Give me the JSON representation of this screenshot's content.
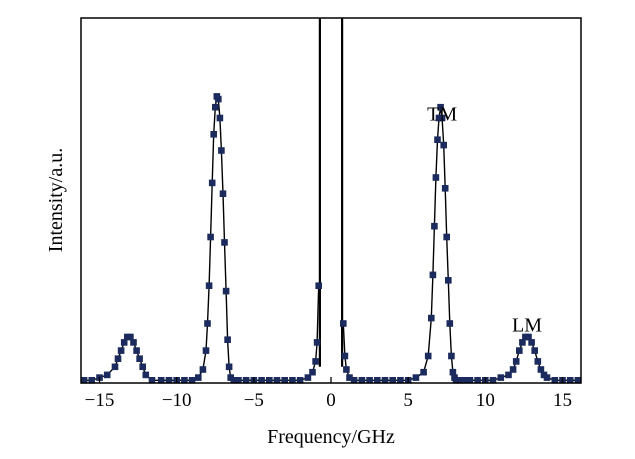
{
  "chart_data": {
    "type": "scatter",
    "title": "",
    "xlabel": "Frequency/GHz",
    "ylabel": "Intensity/a.u.",
    "xlim": [
      -16.2,
      16.2
    ],
    "ylim": [
      0,
      1.35
    ],
    "x_ticks": [
      -15,
      -10,
      -5,
      0,
      5,
      10,
      15
    ],
    "x_tick_labels": [
      "−15",
      "−10",
      "−5",
      "0",
      "5",
      "10",
      "15"
    ],
    "y_tick_labels_shown": false,
    "grid": false,
    "legend": "none",
    "marker_color": "#1c2b5e",
    "line_color": "#000000",
    "annotations": [
      {
        "text": "TM",
        "x": 7.2,
        "y": 0.97
      },
      {
        "text": "LM",
        "x": 12.7,
        "y": 0.19
      }
    ],
    "series": [
      {
        "x": [
          -16.0,
          -15.5,
          -15.0,
          -14.5,
          -14.0,
          -13.8,
          -13.6,
          -13.4,
          -13.2,
          -13.0,
          -12.8,
          -12.6,
          -12.4,
          -12.2,
          -12.0,
          -11.6,
          -11.0,
          -10.5,
          -10.0,
          -9.5,
          -9.0,
          -8.6,
          -8.3,
          -8.1,
          -8.0,
          -7.9,
          -7.8,
          -7.7,
          -7.6,
          -7.5,
          -7.4,
          -7.3,
          -7.2,
          -7.1,
          -7.0,
          -6.9,
          -6.8,
          -6.7,
          -6.6,
          -6.5,
          -6.3,
          -6.0,
          -5.5,
          -5.0,
          -4.5,
          -4.0,
          -3.5,
          -3.0,
          -2.5,
          -2.0,
          -1.5,
          -1.2,
          -1.0,
          -0.9,
          -0.8,
          0.8,
          0.9,
          1.0,
          1.2,
          1.5,
          2.0,
          2.5,
          3.0,
          3.5,
          4.0,
          4.5,
          5.0,
          5.5,
          6.0,
          6.3,
          6.5,
          6.6,
          6.7,
          6.8,
          6.9,
          7.0,
          7.1,
          7.2,
          7.3,
          7.4,
          7.5,
          7.6,
          7.7,
          7.8,
          7.9,
          8.0,
          8.1,
          8.3,
          8.6,
          9.0,
          9.5,
          10.0,
          10.5,
          11.0,
          11.5,
          11.8,
          12.0,
          12.2,
          12.4,
          12.6,
          12.8,
          13.0,
          13.2,
          13.4,
          13.6,
          13.8,
          14.0,
          14.5,
          15.0,
          15.5,
          16.0
        ],
        "y": [
          0.01,
          0.01,
          0.02,
          0.03,
          0.06,
          0.09,
          0.12,
          0.15,
          0.17,
          0.17,
          0.15,
          0.12,
          0.09,
          0.06,
          0.03,
          0.01,
          0.01,
          0.01,
          0.01,
          0.01,
          0.01,
          0.02,
          0.05,
          0.12,
          0.22,
          0.36,
          0.54,
          0.74,
          0.92,
          1.02,
          1.06,
          1.05,
          0.98,
          0.86,
          0.7,
          0.52,
          0.34,
          0.16,
          0.06,
          0.02,
          0.01,
          0.01,
          0.01,
          0.01,
          0.01,
          0.01,
          0.01,
          0.01,
          0.01,
          0.01,
          0.02,
          0.04,
          0.08,
          0.15,
          0.36,
          0.22,
          0.1,
          0.05,
          0.02,
          0.01,
          0.01,
          0.01,
          0.01,
          0.01,
          0.01,
          0.01,
          0.01,
          0.02,
          0.04,
          0.1,
          0.24,
          0.4,
          0.58,
          0.76,
          0.9,
          0.98,
          1.02,
          0.98,
          0.88,
          0.72,
          0.54,
          0.38,
          0.22,
          0.1,
          0.04,
          0.02,
          0.01,
          0.01,
          0.01,
          0.01,
          0.01,
          0.01,
          0.01,
          0.02,
          0.03,
          0.05,
          0.08,
          0.12,
          0.15,
          0.17,
          0.17,
          0.15,
          0.12,
          0.08,
          0.05,
          0.03,
          0.02,
          0.01,
          0.01,
          0.01,
          0.01
        ]
      }
    ],
    "center_peak": {
      "x": [
        -0.72,
        0.72
      ],
      "extends_above_plot": true
    }
  }
}
